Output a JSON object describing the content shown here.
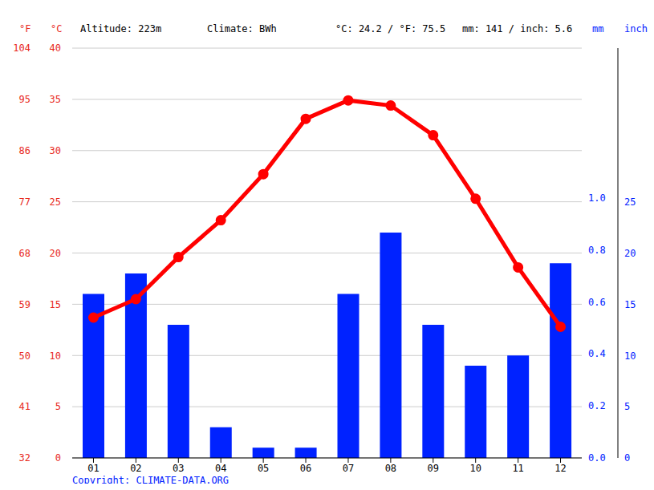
{
  "chart_data": {
    "type": "bar",
    "annotations": [
      "Altitude: 223m",
      "Climate: BWh",
      "°C: 24.2 / °F: 75.5",
      "mm: 141 / inch: 5.6",
      "Copyright: CLIMATE-DATA.ORG"
    ],
    "y_label": "°C",
    "y2_label": "mm",
    "y3_label": "°F",
    "y4_label": "inch",
    "categories": [
      "01",
      "02",
      "03",
      "04",
      "05",
      "06",
      "07",
      "08",
      "09",
      "10",
      "11",
      "12"
    ],
    "series": [
      {
        "type": "line",
        "color": "#ff0000",
        "marker": "circle",
        "values": [
          13.7,
          15.5,
          19.6,
          23.2,
          27.7,
          33.1,
          34.9,
          34.4,
          31.5,
          25.3,
          18.6,
          12.8
        ]
      },
      {
        "type": "bar",
        "color": "#0022ff",
        "axis": "y2",
        "values": [
          16,
          18,
          13,
          3,
          1,
          1,
          16,
          22,
          13,
          9,
          10,
          19
        ]
      }
    ],
    "ylim": [
      0,
      40
    ],
    "yticks": [
      0,
      5,
      10,
      15,
      20,
      25,
      30,
      35,
      40
    ],
    "y2lim": [
      0,
      40
    ],
    "y2ticks": [
      0,
      5,
      10,
      15,
      20,
      25
    ],
    "y3lim": [
      32,
      104
    ],
    "y3ticks": [
      32,
      41,
      50,
      59,
      68,
      77,
      86,
      95,
      104
    ],
    "y4lim": [
      0,
      1.575
    ],
    "y4ticks": [
      {
        "value": 0,
        "label": "0.0"
      },
      {
        "value": 0.2,
        "label": "0.2"
      },
      {
        "value": 0.4,
        "label": "0.4"
      },
      {
        "value": 0.6,
        "label": "0.6"
      },
      {
        "value": 0.8,
        "label": "0.8"
      },
      {
        "value": 1.0,
        "label": "1.0"
      }
    ],
    "grid": true
  }
}
